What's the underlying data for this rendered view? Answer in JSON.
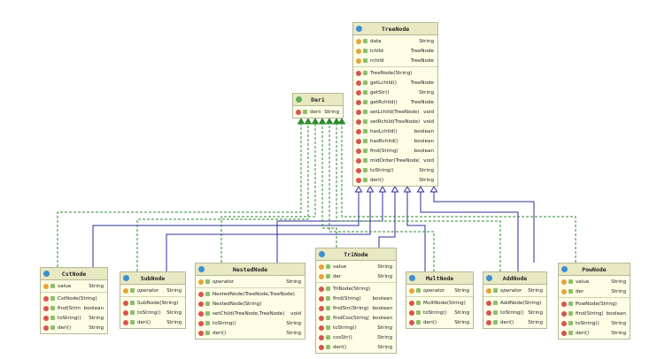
{
  "classes": [
    {
      "name": "TreeNode",
      "kind": "class",
      "fields": [
        {
          "name": "data",
          "type": "String"
        },
        {
          "name": "lchild",
          "type": "TreeNode"
        },
        {
          "name": "rchild",
          "type": "TreeNode"
        }
      ],
      "methods": [
        {
          "name": "TreeNode(String)",
          "type": null
        },
        {
          "name": "getLchild()",
          "type": "TreeNode"
        },
        {
          "name": "getStr()",
          "type": "String"
        },
        {
          "name": "getRchild()",
          "type": "TreeNode"
        },
        {
          "name": "setLchild(TreeNode)",
          "type": "void"
        },
        {
          "name": "setRchild(TreeNode)",
          "type": "void"
        },
        {
          "name": "hasLchild()",
          "type": "boolean"
        },
        {
          "name": "hasRchild()",
          "type": "boolean"
        },
        {
          "name": "find(String)",
          "type": "boolean"
        },
        {
          "name": "midOrder(TreeNode)",
          "type": "void"
        },
        {
          "name": "toString()",
          "type": "String"
        },
        {
          "name": "deri()",
          "type": "String"
        }
      ]
    },
    {
      "name": "Deri",
      "kind": "interface",
      "fields": [],
      "methods": [
        {
          "name": "deri()",
          "type": "String"
        }
      ]
    },
    {
      "name": "CstNode",
      "kind": "class",
      "fields": [
        {
          "name": "value",
          "type": "String"
        }
      ],
      "methods": [
        {
          "name": "CstNode(String)",
          "type": null
        },
        {
          "name": "find(String)",
          "type": "boolean"
        },
        {
          "name": "toString()",
          "type": "String"
        },
        {
          "name": "deri()",
          "type": "String"
        }
      ]
    },
    {
      "name": "SubNode",
      "kind": "class",
      "fields": [
        {
          "name": "operator",
          "type": "String"
        }
      ],
      "methods": [
        {
          "name": "SubNode(String)",
          "type": null
        },
        {
          "name": "toString()",
          "type": "String"
        },
        {
          "name": "deri()",
          "type": "String"
        }
      ]
    },
    {
      "name": "NestedNode",
      "kind": "class",
      "fields": [
        {
          "name": "operator",
          "type": "String"
        }
      ],
      "methods": [
        {
          "name": "NestedNode(TreeNode,TreeNode)",
          "type": null
        },
        {
          "name": "NestedNode(String)",
          "type": null
        },
        {
          "name": "setChild(TreeNode,TreeNode)",
          "type": "void"
        },
        {
          "name": "toString()",
          "type": "String"
        },
        {
          "name": "deri()",
          "type": "String"
        }
      ]
    },
    {
      "name": "TriNode",
      "kind": "class",
      "fields": [
        {
          "name": "value",
          "type": "String"
        },
        {
          "name": "der",
          "type": "String"
        }
      ],
      "methods": [
        {
          "name": "TriNode(String)",
          "type": null
        },
        {
          "name": "find(String)",
          "type": "boolean"
        },
        {
          "name": "findSin(String)",
          "type": "boolean"
        },
        {
          "name": "findCos(String)",
          "type": "boolean"
        },
        {
          "name": "toString()",
          "type": "String"
        },
        {
          "name": "cosStr()",
          "type": "String"
        },
        {
          "name": "deri()",
          "type": "String"
        }
      ]
    },
    {
      "name": "MultNode",
      "kind": "class",
      "fields": [
        {
          "name": "operator",
          "type": "String"
        }
      ],
      "methods": [
        {
          "name": "MultNode(String)",
          "type": null
        },
        {
          "name": "toString()",
          "type": "String"
        },
        {
          "name": "deri()",
          "type": "String"
        }
      ]
    },
    {
      "name": "AddNode",
      "kind": "class",
      "fields": [
        {
          "name": "operator",
          "type": "String"
        }
      ],
      "methods": [
        {
          "name": "AddNode(String)",
          "type": null
        },
        {
          "name": "toString()",
          "type": "String"
        },
        {
          "name": "deri()",
          "type": "String"
        }
      ]
    },
    {
      "name": "PowNode",
      "kind": "class",
      "fields": [
        {
          "name": "value",
          "type": "String"
        },
        {
          "name": "der",
          "type": "String"
        }
      ],
      "methods": [
        {
          "name": "PowNode(String)",
          "type": null
        },
        {
          "name": "find(String)",
          "type": "boolean"
        },
        {
          "name": "toString()",
          "type": "String"
        },
        {
          "name": "deri()",
          "type": "String"
        }
      ]
    }
  ]
}
